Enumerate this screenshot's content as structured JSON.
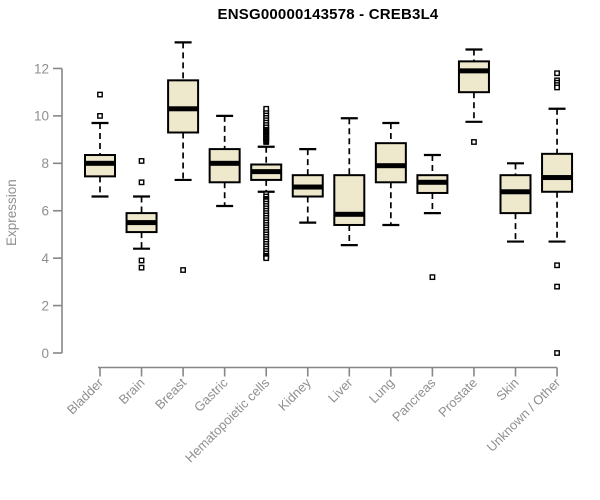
{
  "chart_data": {
    "type": "box",
    "title": "ENSG00000143578 - CREB3L4",
    "ylabel": "Expression",
    "xlabel": "",
    "yticks": [
      0,
      2,
      4,
      6,
      8,
      10,
      12
    ],
    "ylim": [
      0,
      13.3
    ],
    "grid": false,
    "legend": "none",
    "categories": [
      "Bladder",
      "Brain",
      "Breast",
      "Gastric",
      "Hematopoietic cells",
      "Kidney",
      "Liver",
      "Lung",
      "Pancreas",
      "Prostate",
      "Skin",
      "Unknown / Other"
    ],
    "boxes": [
      {
        "category": "Bladder",
        "whisker_low": 6.6,
        "q1": 7.45,
        "median": 8.0,
        "q3": 8.35,
        "whisker_high": 9.7,
        "outliers": [
          10.0,
          10.9
        ]
      },
      {
        "category": "Brain",
        "whisker_low": 4.4,
        "q1": 5.1,
        "median": 5.5,
        "q3": 5.9,
        "whisker_high": 6.6,
        "outliers": [
          8.1,
          7.2,
          3.9,
          3.6
        ]
      },
      {
        "category": "Breast",
        "whisker_low": 7.3,
        "q1": 9.3,
        "median": 10.3,
        "q3": 11.5,
        "whisker_high": 13.1,
        "outliers": [
          3.5
        ]
      },
      {
        "category": "Gastric",
        "whisker_low": 6.2,
        "q1": 7.2,
        "median": 8.0,
        "q3": 8.6,
        "whisker_high": 10.0,
        "outliers": []
      },
      {
        "category": "Hematopoietic cells",
        "whisker_low": 6.8,
        "q1": 7.3,
        "median": 7.65,
        "q3": 7.95,
        "whisker_high": 8.7,
        "outliers": [
          8.9,
          8.95,
          9.0,
          9.05,
          9.1,
          9.15,
          9.2,
          9.25,
          9.3,
          9.35,
          9.4,
          9.45,
          9.5,
          9.55,
          9.6,
          9.7,
          9.8,
          9.9,
          10.0,
          10.1,
          10.2,
          10.3,
          6.7,
          6.6,
          6.5,
          6.45,
          6.4,
          6.3,
          6.2,
          6.1,
          6.0,
          5.9,
          5.8,
          5.7,
          5.6,
          5.5,
          5.4,
          5.3,
          5.2,
          5.1,
          5.0,
          4.9,
          4.8,
          4.7,
          4.6,
          4.5,
          4.4,
          4.3,
          4.2,
          4.1,
          4.05,
          4.0
        ]
      },
      {
        "category": "Kidney",
        "whisker_low": 5.5,
        "q1": 6.6,
        "median": 7.0,
        "q3": 7.5,
        "whisker_high": 8.6,
        "outliers": []
      },
      {
        "category": "Liver",
        "whisker_low": 4.55,
        "q1": 5.4,
        "median": 5.85,
        "q3": 7.5,
        "whisker_high": 9.9,
        "outliers": []
      },
      {
        "category": "Lung",
        "whisker_low": 5.4,
        "q1": 7.2,
        "median": 7.9,
        "q3": 8.85,
        "whisker_high": 9.7,
        "outliers": []
      },
      {
        "category": "Pancreas",
        "whisker_low": 5.9,
        "q1": 6.75,
        "median": 7.2,
        "q3": 7.5,
        "whisker_high": 8.35,
        "outliers": [
          3.2
        ]
      },
      {
        "category": "Prostate",
        "whisker_low": 9.75,
        "q1": 11.0,
        "median": 11.9,
        "q3": 12.3,
        "whisker_high": 12.8,
        "outliers": [
          8.9
        ]
      },
      {
        "category": "Skin",
        "whisker_low": 4.7,
        "q1": 5.9,
        "median": 6.8,
        "q3": 7.5,
        "whisker_high": 8.0,
        "outliers": []
      },
      {
        "category": "Unknown / Other",
        "whisker_low": 4.7,
        "q1": 6.8,
        "median": 7.4,
        "q3": 8.4,
        "whisker_high": 10.3,
        "outliers": [
          11.8,
          11.5,
          11.4,
          11.3,
          11.2,
          3.7,
          2.8,
          0.0
        ]
      }
    ],
    "colors": {
      "box_fill": "#EEE8CD",
      "box_border": "#000000",
      "median": "#000000",
      "outlier_stroke": "#000000",
      "axis": "#878787",
      "tick_label": "#8f8f8f",
      "title": "#000000"
    }
  }
}
